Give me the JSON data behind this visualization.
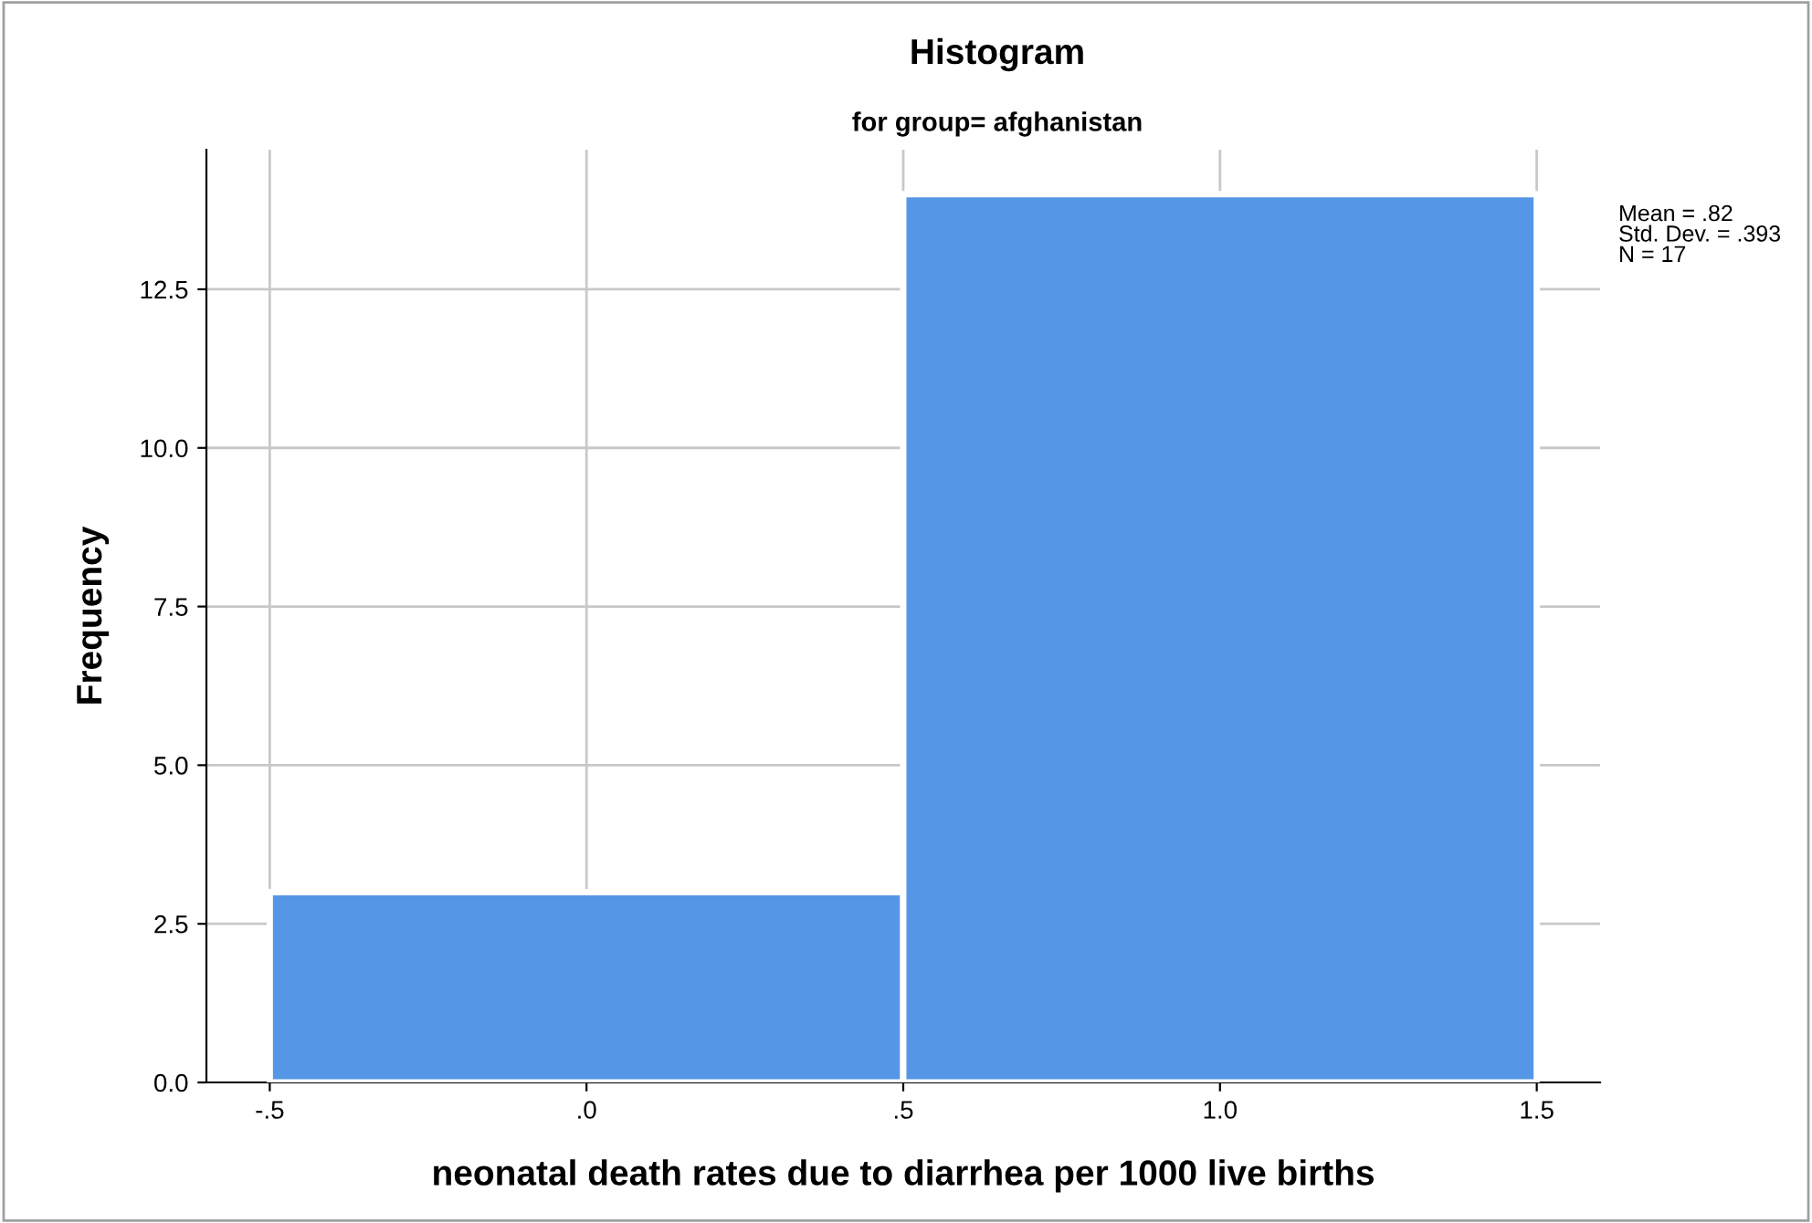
{
  "chart_data": {
    "type": "histogram",
    "title": "Histogram",
    "subtitle": "for group= afghanistan",
    "xlabel": "neonatal death rates due to diarrhea per 1000 live births",
    "ylabel": "Frequency",
    "bins": [
      -0.5,
      0.5,
      1.5
    ],
    "values": [
      3,
      14
    ],
    "color": "#5596e6",
    "xlim": [
      -0.6,
      1.6
    ],
    "xticks": [
      {
        "value": -0.5,
        "label": "-.5"
      },
      {
        "value": 0,
        "label": ".0"
      },
      {
        "value": 0.5,
        "label": ".5"
      },
      {
        "value": 1.0,
        "label": "1.0"
      },
      {
        "value": 1.5,
        "label": "1.5"
      }
    ],
    "ylim": [
      0,
      14.7
    ],
    "yticks": [
      {
        "value": 0,
        "label": "0.0"
      },
      {
        "value": 2.5,
        "label": "2.5"
      },
      {
        "value": 5,
        "label": "5.0"
      },
      {
        "value": 7.5,
        "label": "7.5"
      },
      {
        "value": 10,
        "label": "10.0"
      },
      {
        "value": 12.5,
        "label": "12.5"
      }
    ],
    "grid": true,
    "legend": false,
    "annotations": [
      "Mean = .82\nStd. Dev. = .393\nN = 17"
    ]
  }
}
